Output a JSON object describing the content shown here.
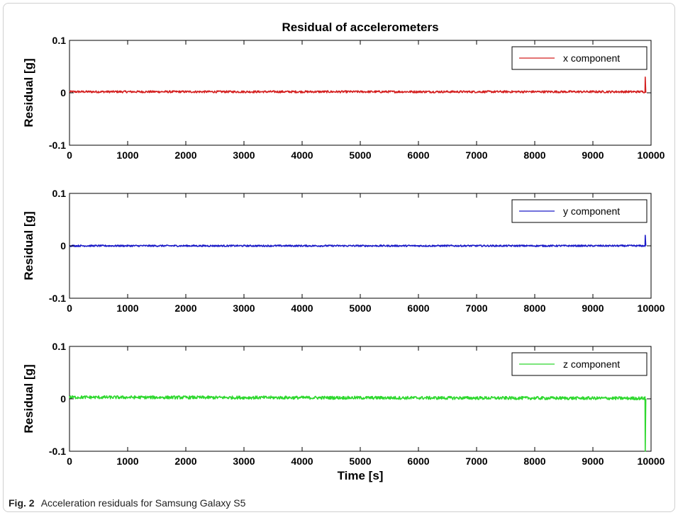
{
  "figure": {
    "caption_label": "Fig. 2",
    "caption_text": "Acceleration residuals for Samsung Galaxy S5"
  },
  "chart_data": [
    {
      "type": "line",
      "title": "Residual of accelerometers",
      "xlabel": "",
      "ylabel": "Residual [g]",
      "xlim": [
        0,
        10000
      ],
      "ylim": [
        -0.1,
        0.1
      ],
      "xticks": [
        0,
        1000,
        2000,
        3000,
        4000,
        5000,
        6000,
        7000,
        8000,
        9000,
        10000
      ],
      "yticks": [
        -0.1,
        0,
        0.1
      ],
      "xtick_labels": [
        "0",
        "1000",
        "2000",
        "3000",
        "4000",
        "5000",
        "6000",
        "7000",
        "8000",
        "9000",
        "10000"
      ],
      "ytick_labels": [
        "-0.1",
        "0",
        "0.1"
      ],
      "grid": false,
      "legend_position": "top-right",
      "series": [
        {
          "name": "x component",
          "color": "#d42020",
          "x": [
            0,
            9900,
            9900,
            9910
          ],
          "y": [
            0.002,
            0.002,
            0.03,
            0.0
          ],
          "noise_amplitude": 0.002
        }
      ]
    },
    {
      "type": "line",
      "title": "",
      "xlabel": "",
      "ylabel": "Residual [g]",
      "xlim": [
        0,
        10000
      ],
      "ylim": [
        -0.1,
        0.1
      ],
      "xticks": [
        0,
        1000,
        2000,
        3000,
        4000,
        5000,
        6000,
        7000,
        8000,
        9000,
        10000
      ],
      "yticks": [
        -0.1,
        0,
        0.1
      ],
      "xtick_labels": [
        "0",
        "1000",
        "2000",
        "3000",
        "4000",
        "5000",
        "6000",
        "7000",
        "8000",
        "9000",
        "10000"
      ],
      "ytick_labels": [
        "-0.1",
        "0",
        "0.1"
      ],
      "grid": false,
      "legend_position": "top-right",
      "series": [
        {
          "name": "y component",
          "color": "#1c1cc8",
          "x": [
            0,
            9900,
            9900,
            9910
          ],
          "y": [
            0.0,
            0.0,
            0.02,
            0.0
          ],
          "noise_amplitude": 0.0015
        }
      ]
    },
    {
      "type": "line",
      "title": "",
      "xlabel": "Time [s]",
      "ylabel": "Residual [g]",
      "xlim": [
        0,
        10000
      ],
      "ylim": [
        -0.1,
        0.1
      ],
      "xticks": [
        0,
        1000,
        2000,
        3000,
        4000,
        5000,
        6000,
        7000,
        8000,
        9000,
        10000
      ],
      "yticks": [
        -0.1,
        0,
        0.1
      ],
      "xtick_labels": [
        "0",
        "1000",
        "2000",
        "3000",
        "4000",
        "5000",
        "6000",
        "7000",
        "8000",
        "9000",
        "10000"
      ],
      "ytick_labels": [
        "-0.1",
        "0",
        "0.1"
      ],
      "grid": false,
      "legend_position": "top-right",
      "series": [
        {
          "name": "z component",
          "color": "#2ed82e",
          "x": [
            0,
            9900,
            9900,
            9910
          ],
          "y": [
            0.003,
            0.001,
            -0.1,
            0.0
          ],
          "noise_amplitude": 0.003
        }
      ]
    }
  ]
}
